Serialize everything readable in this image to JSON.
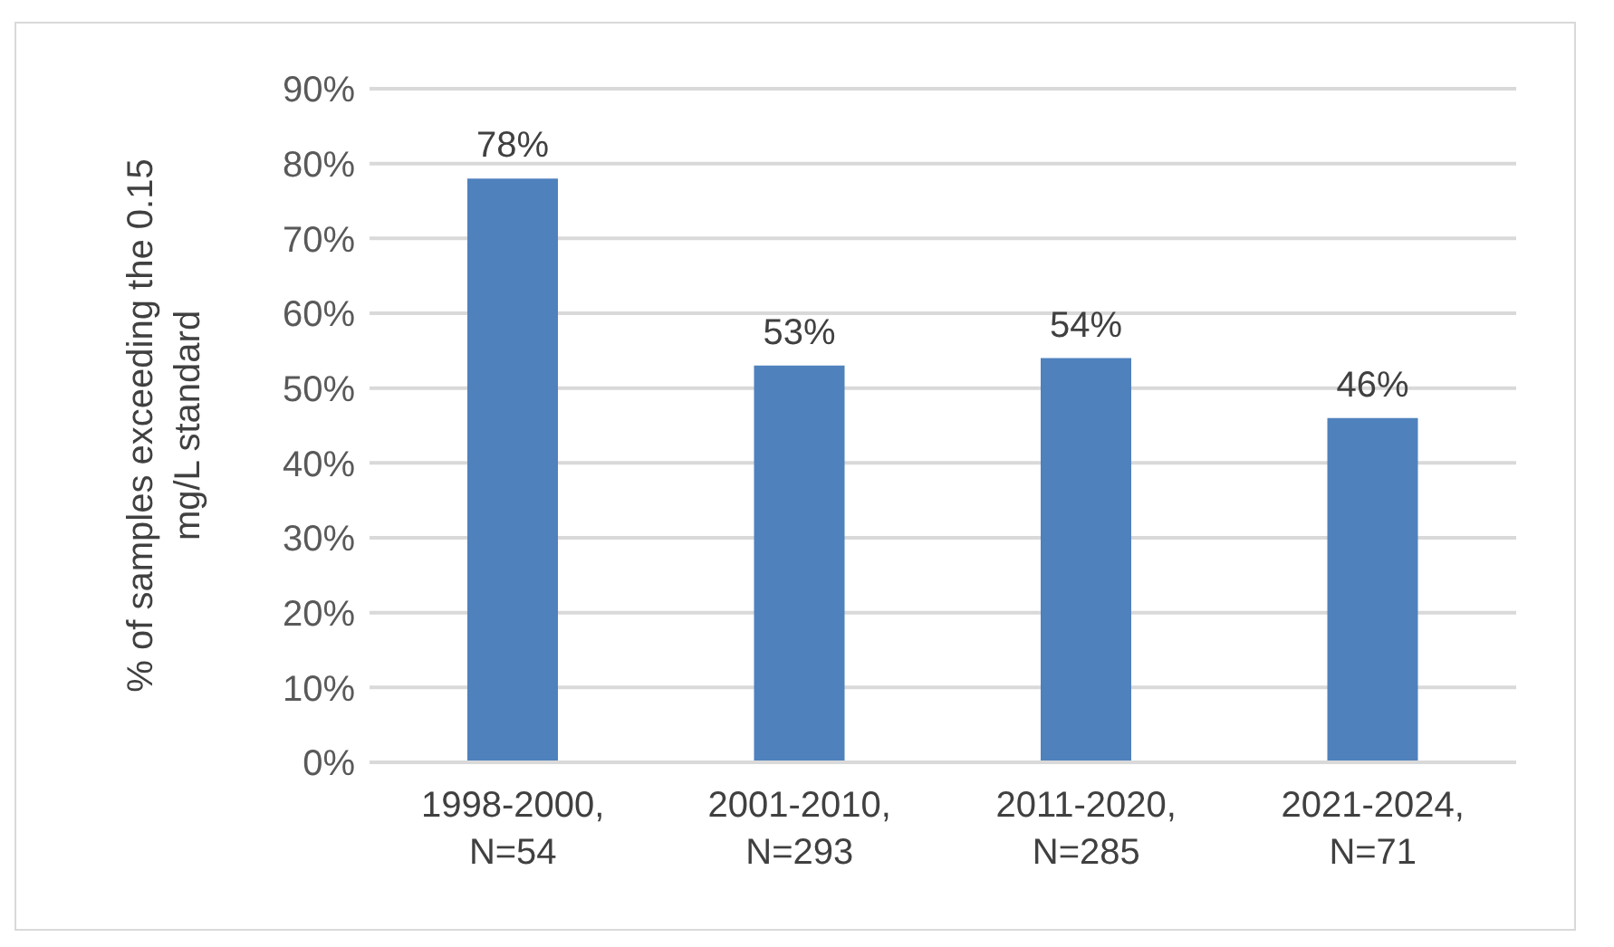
{
  "chart_data": {
    "type": "bar",
    "ylabel": "% of samples exceeding the 0.15 mg/L standard",
    "categories": [
      "1998-2000, N=54",
      "2001-2010, N=293",
      "2011-2020, N=285",
      "2021-2024, N=71"
    ],
    "series": [
      {
        "color": "#4f81bd",
        "values": [
          78,
          53,
          54,
          46
        ]
      }
    ],
    "value_labels": [
      "78%",
      "53%",
      "54%",
      "46%"
    ],
    "ylim": [
      0,
      90
    ],
    "yticks": [
      {
        "value": 0,
        "label": "0%"
      },
      {
        "value": 10,
        "label": "10%"
      },
      {
        "value": 20,
        "label": "20%"
      },
      {
        "value": 30,
        "label": "30%"
      },
      {
        "value": 40,
        "label": "40%"
      },
      {
        "value": 50,
        "label": "50%"
      },
      {
        "value": 60,
        "label": "60%"
      },
      {
        "value": 70,
        "label": "70%"
      },
      {
        "value": 80,
        "label": "80%"
      },
      {
        "value": 90,
        "label": "90%"
      }
    ],
    "grid": "y",
    "legend": false
  }
}
